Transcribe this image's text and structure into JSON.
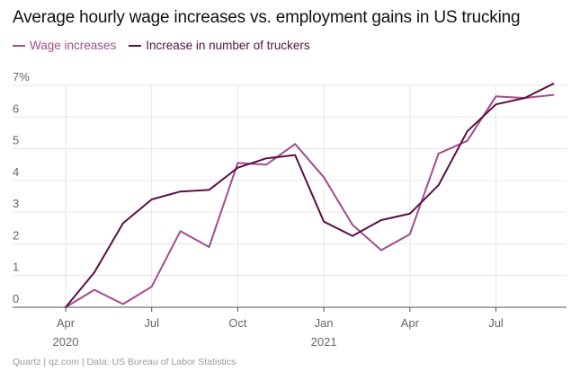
{
  "title": "Average hourly wage increases vs. employment gains in US trucking",
  "footer": "Quartz | qz.com | Data: US Bureau of Labor Statistics",
  "colors": {
    "wage": "#a14d8c",
    "truckers": "#5a0f44",
    "grid": "#e6e6e6",
    "axis": "#555555",
    "tick_text": "#666666",
    "title": "#111111"
  },
  "chart_data": {
    "type": "line",
    "title": "Average hourly wage increases vs. employment gains in US trucking",
    "xlabel": "",
    "ylabel": "",
    "ylim": [
      0,
      7
    ],
    "y_ticks": [
      "0",
      "1",
      "2",
      "3",
      "4",
      "5",
      "6",
      "7%"
    ],
    "x_ticks": [
      {
        "date": "2020-04",
        "label": "Apr",
        "year": "2020"
      },
      {
        "date": "2020-07",
        "label": "Jul",
        "year": ""
      },
      {
        "date": "2020-10",
        "label": "Oct",
        "year": ""
      },
      {
        "date": "2021-01",
        "label": "Jan",
        "year": "2021"
      },
      {
        "date": "2021-04",
        "label": "Apr",
        "year": ""
      },
      {
        "date": "2021-07",
        "label": "Jul",
        "year": ""
      }
    ],
    "x": [
      "2020-04",
      "2020-05",
      "2020-06",
      "2020-07",
      "2020-08",
      "2020-09",
      "2020-10",
      "2020-11",
      "2020-12",
      "2021-01",
      "2021-02",
      "2021-03",
      "2021-04",
      "2021-05",
      "2021-06",
      "2021-07",
      "2021-08",
      "2021-09"
    ],
    "grid": true,
    "legend_position": "top-left",
    "series": [
      {
        "name": "Wage increases",
        "color": "#a14d8c",
        "values": [
          0.0,
          0.55,
          0.1,
          0.65,
          2.4,
          1.9,
          4.55,
          4.5,
          5.15,
          4.1,
          2.6,
          1.8,
          2.3,
          4.85,
          5.25,
          6.65,
          6.6,
          6.7
        ]
      },
      {
        "name": "Increase in number of truckers",
        "color": "#5a0f44",
        "values": [
          0.0,
          1.1,
          2.65,
          3.4,
          3.65,
          3.7,
          4.4,
          4.7,
          4.8,
          2.7,
          2.25,
          2.75,
          2.95,
          3.85,
          5.55,
          6.4,
          6.6,
          7.05
        ]
      }
    ]
  }
}
